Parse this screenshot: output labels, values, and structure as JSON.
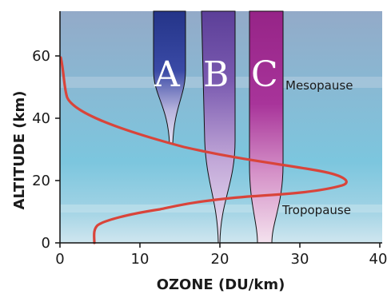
{
  "axes": {
    "x_label": "OZONE (DU/km)",
    "y_label": "ALTITUDE (km)",
    "x_ticks": [
      "0",
      "10",
      "20",
      "30",
      "40"
    ],
    "y_ticks": [
      "0",
      "20",
      "40",
      "60"
    ]
  },
  "labels": {
    "mesopause": "Mesopause",
    "tropopause": "Tropopause"
  },
  "bands": [
    {
      "letter": "A",
      "color": "#2f3a8f"
    },
    {
      "letter": "B",
      "color": "#6a4aa0"
    },
    {
      "letter": "C",
      "color": "#a0238f"
    }
  ],
  "colors": {
    "sky_top": "#8aa9c8",
    "sky_mid": "#7cc4dd",
    "sky_low": "#b8dcea",
    "profile_line": "#d9443a"
  }
}
